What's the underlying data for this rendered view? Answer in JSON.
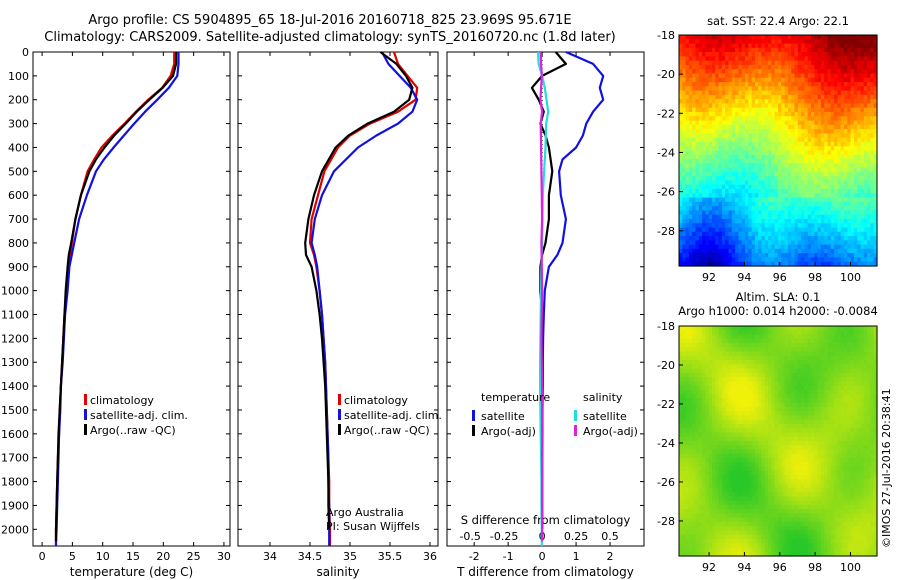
{
  "title": {
    "line1": "Argo profile: CS 5904895_65 18-Jul-2016 20160718_825 23.969S 95.671E",
    "line2": "Climatology: CARS2009. Satellite-adjusted climatology: synTS_20160720.nc (1.8d later)"
  },
  "maps": {
    "sst_title": "sat. SST: 22.4  Argo: 22.1",
    "sla_title1": "Altim. SLA: 0.1",
    "sla_title2": "Argo h1000: 0.014  h2000: -0.0084"
  },
  "footer_stamp": "©IMOS 27-Jul-2016 20:38:41",
  "chart_data": [
    {
      "type": "line",
      "panel": "temperature",
      "xlabel": "temperature (deg C)",
      "xlim": [
        -1.5,
        31
      ],
      "xticks": [
        0,
        5,
        10,
        15,
        20,
        25,
        30
      ],
      "ylim": [
        0,
        2070
      ],
      "yticks": [
        0,
        100,
        200,
        300,
        400,
        500,
        600,
        700,
        800,
        900,
        1000,
        1100,
        1200,
        1300,
        1400,
        1500,
        1600,
        1700,
        1800,
        1900,
        2000
      ],
      "y_reversed": true,
      "legend": [
        "climatology",
        "satellite-adj. clim.",
        "Argo(..raw -QC)"
      ],
      "series": [
        {
          "name": "climatology",
          "color": "#e00000",
          "x": [
            21.8,
            21.8,
            21.2,
            19.8,
            17.5,
            15.5,
            13.6,
            11.6,
            9.8,
            8.6,
            7.5,
            6.4,
            5.5,
            4.9,
            4.6,
            4.3,
            4.0,
            3.7,
            3.5,
            3.3,
            3.1,
            2.9,
            2.8,
            2.6,
            2.5,
            2.4,
            2.3,
            2.3,
            2.3
          ],
          "y": [
            0,
            50,
            100,
            150,
            200,
            250,
            300,
            350,
            400,
            450,
            500,
            600,
            700,
            800,
            850,
            900,
            1000,
            1100,
            1200,
            1300,
            1400,
            1500,
            1600,
            1700,
            1800,
            1900,
            2000,
            2050,
            2070
          ]
        },
        {
          "name": "satellite-adj. clim.",
          "color": "#1010e0",
          "x": [
            22.5,
            22.5,
            22.3,
            20.9,
            19.0,
            17.0,
            15.2,
            13.5,
            11.8,
            10.2,
            8.9,
            7.4,
            6.1,
            5.3,
            4.9,
            4.5,
            4.2,
            3.8,
            3.6,
            3.4,
            3.1,
            3.0,
            2.8,
            2.7,
            2.6,
            2.5,
            2.4,
            2.3,
            2.3
          ],
          "y": [
            0,
            50,
            100,
            150,
            200,
            250,
            300,
            350,
            400,
            450,
            500,
            600,
            700,
            800,
            850,
            900,
            1000,
            1100,
            1200,
            1300,
            1400,
            1500,
            1600,
            1700,
            1800,
            1900,
            2000,
            2050,
            2070
          ]
        },
        {
          "name": "Argo(..raw -QC)",
          "color": "#000000",
          "x": [
            22.1,
            22.1,
            21.6,
            19.9,
            17.7,
            15.6,
            13.8,
            11.9,
            10.3,
            8.9,
            7.8,
            6.4,
            5.5,
            4.8,
            4.4,
            4.2,
            3.9,
            3.7,
            3.5,
            3.3,
            3.1,
            2.9,
            2.7,
            2.6,
            2.5,
            2.4,
            2.3,
            2.3
          ],
          "y": [
            0,
            50,
            100,
            150,
            200,
            250,
            300,
            350,
            400,
            450,
            500,
            600,
            700,
            800,
            850,
            900,
            1000,
            1100,
            1200,
            1300,
            1400,
            1500,
            1600,
            1700,
            1800,
            1900,
            2000,
            2050
          ]
        }
      ]
    },
    {
      "type": "line",
      "panel": "salinity",
      "xlabel": "salinity",
      "xlim": [
        33.6,
        36.1
      ],
      "xticks": [
        34,
        34.5,
        35,
        35.5,
        36
      ],
      "ylim": [
        0,
        2070
      ],
      "y_reversed": true,
      "legend": [
        "climatology",
        "satellite-adj. clim.",
        "Argo(..raw -QC)"
      ],
      "annotation": [
        "Argo Australia",
        "PI: Susan Wijffels"
      ],
      "series": [
        {
          "name": "climatology",
          "color": "#e00000",
          "x": [
            35.55,
            35.6,
            35.72,
            35.84,
            35.82,
            35.6,
            35.25,
            35.0,
            34.85,
            34.68,
            34.6,
            34.52,
            34.5,
            34.55,
            34.58,
            34.62,
            34.65,
            34.67,
            34.69,
            34.7,
            34.71,
            34.72,
            34.73,
            34.74,
            34.74,
            34.75,
            34.75
          ],
          "y": [
            0,
            50,
            100,
            150,
            200,
            250,
            300,
            350,
            400,
            500,
            600,
            700,
            800,
            850,
            900,
            1000,
            1100,
            1200,
            1300,
            1400,
            1500,
            1600,
            1700,
            1800,
            1900,
            2000,
            2070
          ]
        },
        {
          "name": "satellite-adj. clim.",
          "color": "#1010e0",
          "x": [
            35.4,
            35.48,
            35.62,
            35.76,
            35.84,
            35.78,
            35.6,
            35.33,
            35.1,
            34.8,
            34.65,
            34.56,
            34.52,
            34.56,
            34.59,
            34.62,
            34.65,
            34.67,
            34.69,
            34.7,
            34.71,
            34.72,
            34.73,
            34.73,
            34.74,
            34.74,
            34.74
          ],
          "y": [
            0,
            50,
            100,
            150,
            200,
            250,
            300,
            350,
            400,
            500,
            600,
            700,
            800,
            850,
            900,
            1000,
            1100,
            1200,
            1300,
            1400,
            1500,
            1600,
            1700,
            1800,
            1900,
            2000,
            2070
          ]
        },
        {
          "name": "Argo(..raw -QC)",
          "color": "#000000",
          "x": [
            35.38,
            35.58,
            35.7,
            35.78,
            35.74,
            35.55,
            35.22,
            34.98,
            34.82,
            34.65,
            34.55,
            34.48,
            34.44,
            34.45,
            34.52,
            34.58,
            34.62,
            34.65,
            34.67,
            34.69,
            34.7,
            34.71,
            34.72,
            34.73,
            34.73,
            34.74
          ],
          "y": [
            0,
            50,
            100,
            150,
            200,
            250,
            300,
            350,
            400,
            500,
            600,
            700,
            800,
            850,
            900,
            1000,
            1100,
            1200,
            1300,
            1400,
            1500,
            1600,
            1700,
            1800,
            1900,
            2000
          ]
        }
      ]
    },
    {
      "type": "line",
      "panel": "difference",
      "xlabel": "T difference from climatology",
      "xlabel2": "S difference from climatology",
      "xlim": [
        -2.8,
        3.0
      ],
      "xticks": [
        -2,
        -1,
        0,
        1,
        2
      ],
      "xticks_S": [
        -0.5,
        -0.25,
        0,
        0.25,
        0.5
      ],
      "ylim": [
        0,
        2070
      ],
      "y_reversed": true,
      "legend_headings": [
        "temperature",
        "salinity"
      ],
      "legend": [
        "satellite",
        "Argo(-adj)",
        "satellite",
        "Argo(-adj)"
      ],
      "series": [
        {
          "name": "satellite",
          "quantity": "temperature",
          "color": "#1010e0",
          "x": [
            0.7,
            1.5,
            1.8,
            1.7,
            1.8,
            1.5,
            1.3,
            1.2,
            1.0,
            0.6,
            0.5,
            0.55,
            0.7,
            0.6,
            0.45,
            0.2,
            0.08,
            0.05,
            0.03,
            0.02,
            0.02,
            0.01,
            0.01,
            0.0,
            0.0,
            0.0,
            0.0
          ],
          "y": [
            0,
            50,
            100,
            150,
            200,
            250,
            300,
            350,
            400,
            450,
            500,
            600,
            700,
            800,
            850,
            900,
            1000,
            1100,
            1200,
            1300,
            1400,
            1500,
            1600,
            1700,
            1800,
            1900,
            2000
          ]
        },
        {
          "name": "Argo(-adj)",
          "quantity": "temperature",
          "color": "#000000",
          "x": [
            0.4,
            0.7,
            0.0,
            -0.3,
            -0.1,
            0.05,
            -0.05,
            0.1,
            0.2,
            0.25,
            0.3,
            0.2,
            0.2,
            0.1,
            0.0,
            -0.05,
            -0.05,
            0.0,
            -0.02,
            0.0,
            0.0,
            0.0,
            0.0,
            0.0,
            0.0,
            0.0,
            0.0
          ],
          "y": [
            0,
            50,
            100,
            150,
            200,
            250,
            300,
            350,
            400,
            450,
            500,
            600,
            700,
            800,
            850,
            900,
            1000,
            1100,
            1200,
            1300,
            1400,
            1500,
            1600,
            1700,
            1800,
            1900,
            2000
          ]
        },
        {
          "name": "satellite",
          "quantity": "salinity",
          "color": "#22dddd",
          "x": [
            -0.12,
            -0.1,
            0.0,
            0.08,
            0.18,
            0.12,
            0.1,
            0.06,
            0.02,
            0.01,
            0.0,
            -0.02,
            -0.03,
            -0.04,
            -0.05,
            -0.06,
            -0.06,
            -0.05,
            -0.04,
            -0.03,
            -0.02,
            -0.02,
            -0.01,
            -0.01,
            0.0
          ],
          "y": [
            0,
            50,
            100,
            150,
            250,
            300,
            400,
            500,
            600,
            700,
            800,
            900,
            1000,
            1100,
            1200,
            1300,
            1400,
            1500,
            1600,
            1700,
            1800,
            1900,
            2000,
            2050,
            2070
          ]
        },
        {
          "name": "Argo(-adj)",
          "quantity": "salinity",
          "color": "#dd22dd",
          "x": [
            -0.04,
            -0.03,
            -0.01,
            -0.05,
            0.0,
            -0.04,
            -0.03,
            -0.02,
            -0.01,
            0.0,
            -0.02,
            -0.01,
            0.0,
            -0.01,
            -0.02,
            -0.01,
            0.0,
            0.0,
            0.0,
            0.0,
            0.0,
            0.0,
            0.0,
            0.0
          ],
          "y": [
            0,
            50,
            100,
            200,
            250,
            300,
            400,
            500,
            600,
            700,
            800,
            900,
            1000,
            1100,
            1200,
            1300,
            1400,
            1500,
            1600,
            1700,
            1800,
            1900,
            2000,
            2050
          ]
        }
      ]
    },
    {
      "type": "heatmap",
      "panel": "sat-sst-map",
      "title": "sat. SST: 22.4  Argo: 22.1",
      "xlim": [
        90.3,
        101.5
      ],
      "ylim": [
        -29.8,
        -18
      ],
      "xticks": [
        92,
        94,
        96,
        98,
        100
      ],
      "yticks": [
        -18,
        -20,
        -22,
        -24,
        -26,
        -28
      ],
      "palette": "jet",
      "field": "SST, warm (orange/red) in north-east, cool (blue) in south"
    },
    {
      "type": "heatmap",
      "panel": "sla-map",
      "title": "Altim. SLA: 0.1",
      "subtitle": "Argo h1000: 0.014  h2000: -0.0084",
      "xlim": [
        90.3,
        101.5
      ],
      "ylim": [
        -29.8,
        -18
      ],
      "xticks": [
        92,
        94,
        96,
        98,
        100
      ],
      "yticks": [
        -18,
        -20,
        -22,
        -24,
        -26,
        -28
      ],
      "palette": "green-yellow",
      "field": "sea level anomaly, mottled greens and yellows"
    }
  ]
}
